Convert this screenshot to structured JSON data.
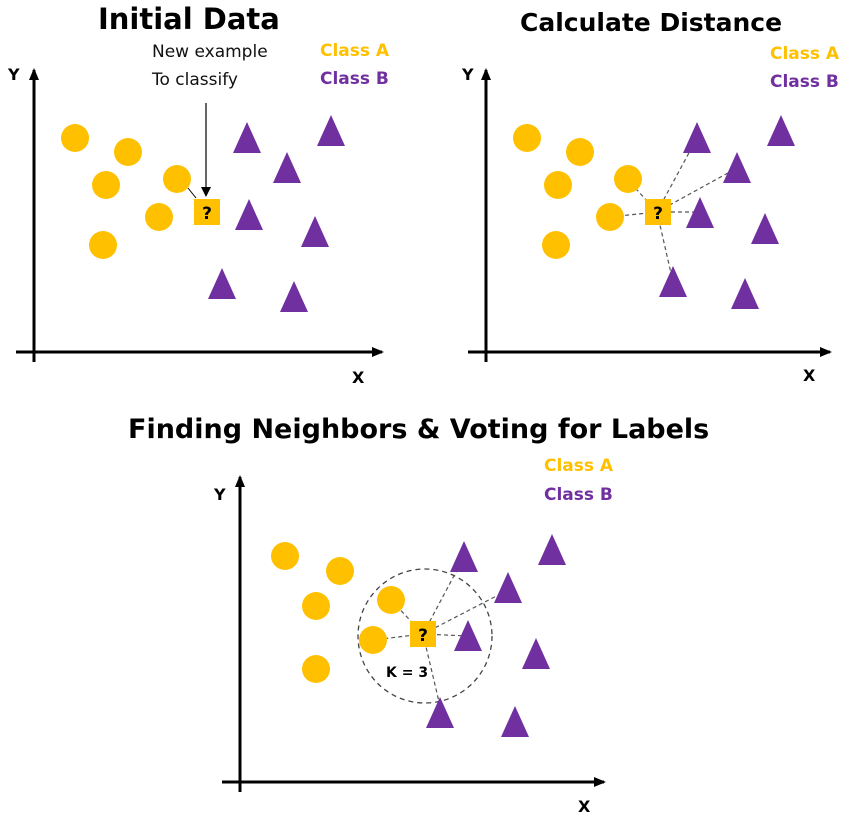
{
  "colors": {
    "class_a": "#ffc000",
    "class_b": "#7030a0",
    "axis": "#000000"
  },
  "panels": {
    "initial": {
      "title": "Initial Data",
      "annotation_line1": "New example",
      "annotation_line2": "To classify"
    },
    "distance": {
      "title": "Calculate Distance"
    },
    "neighbors": {
      "title": "Finding Neighbors & Voting for Labels",
      "k_label": "K = 3"
    }
  },
  "legend": {
    "class_a": "Class A",
    "class_b": "Class B"
  },
  "axes": {
    "x": "X",
    "y": "Y"
  },
  "query_mark": "?"
}
